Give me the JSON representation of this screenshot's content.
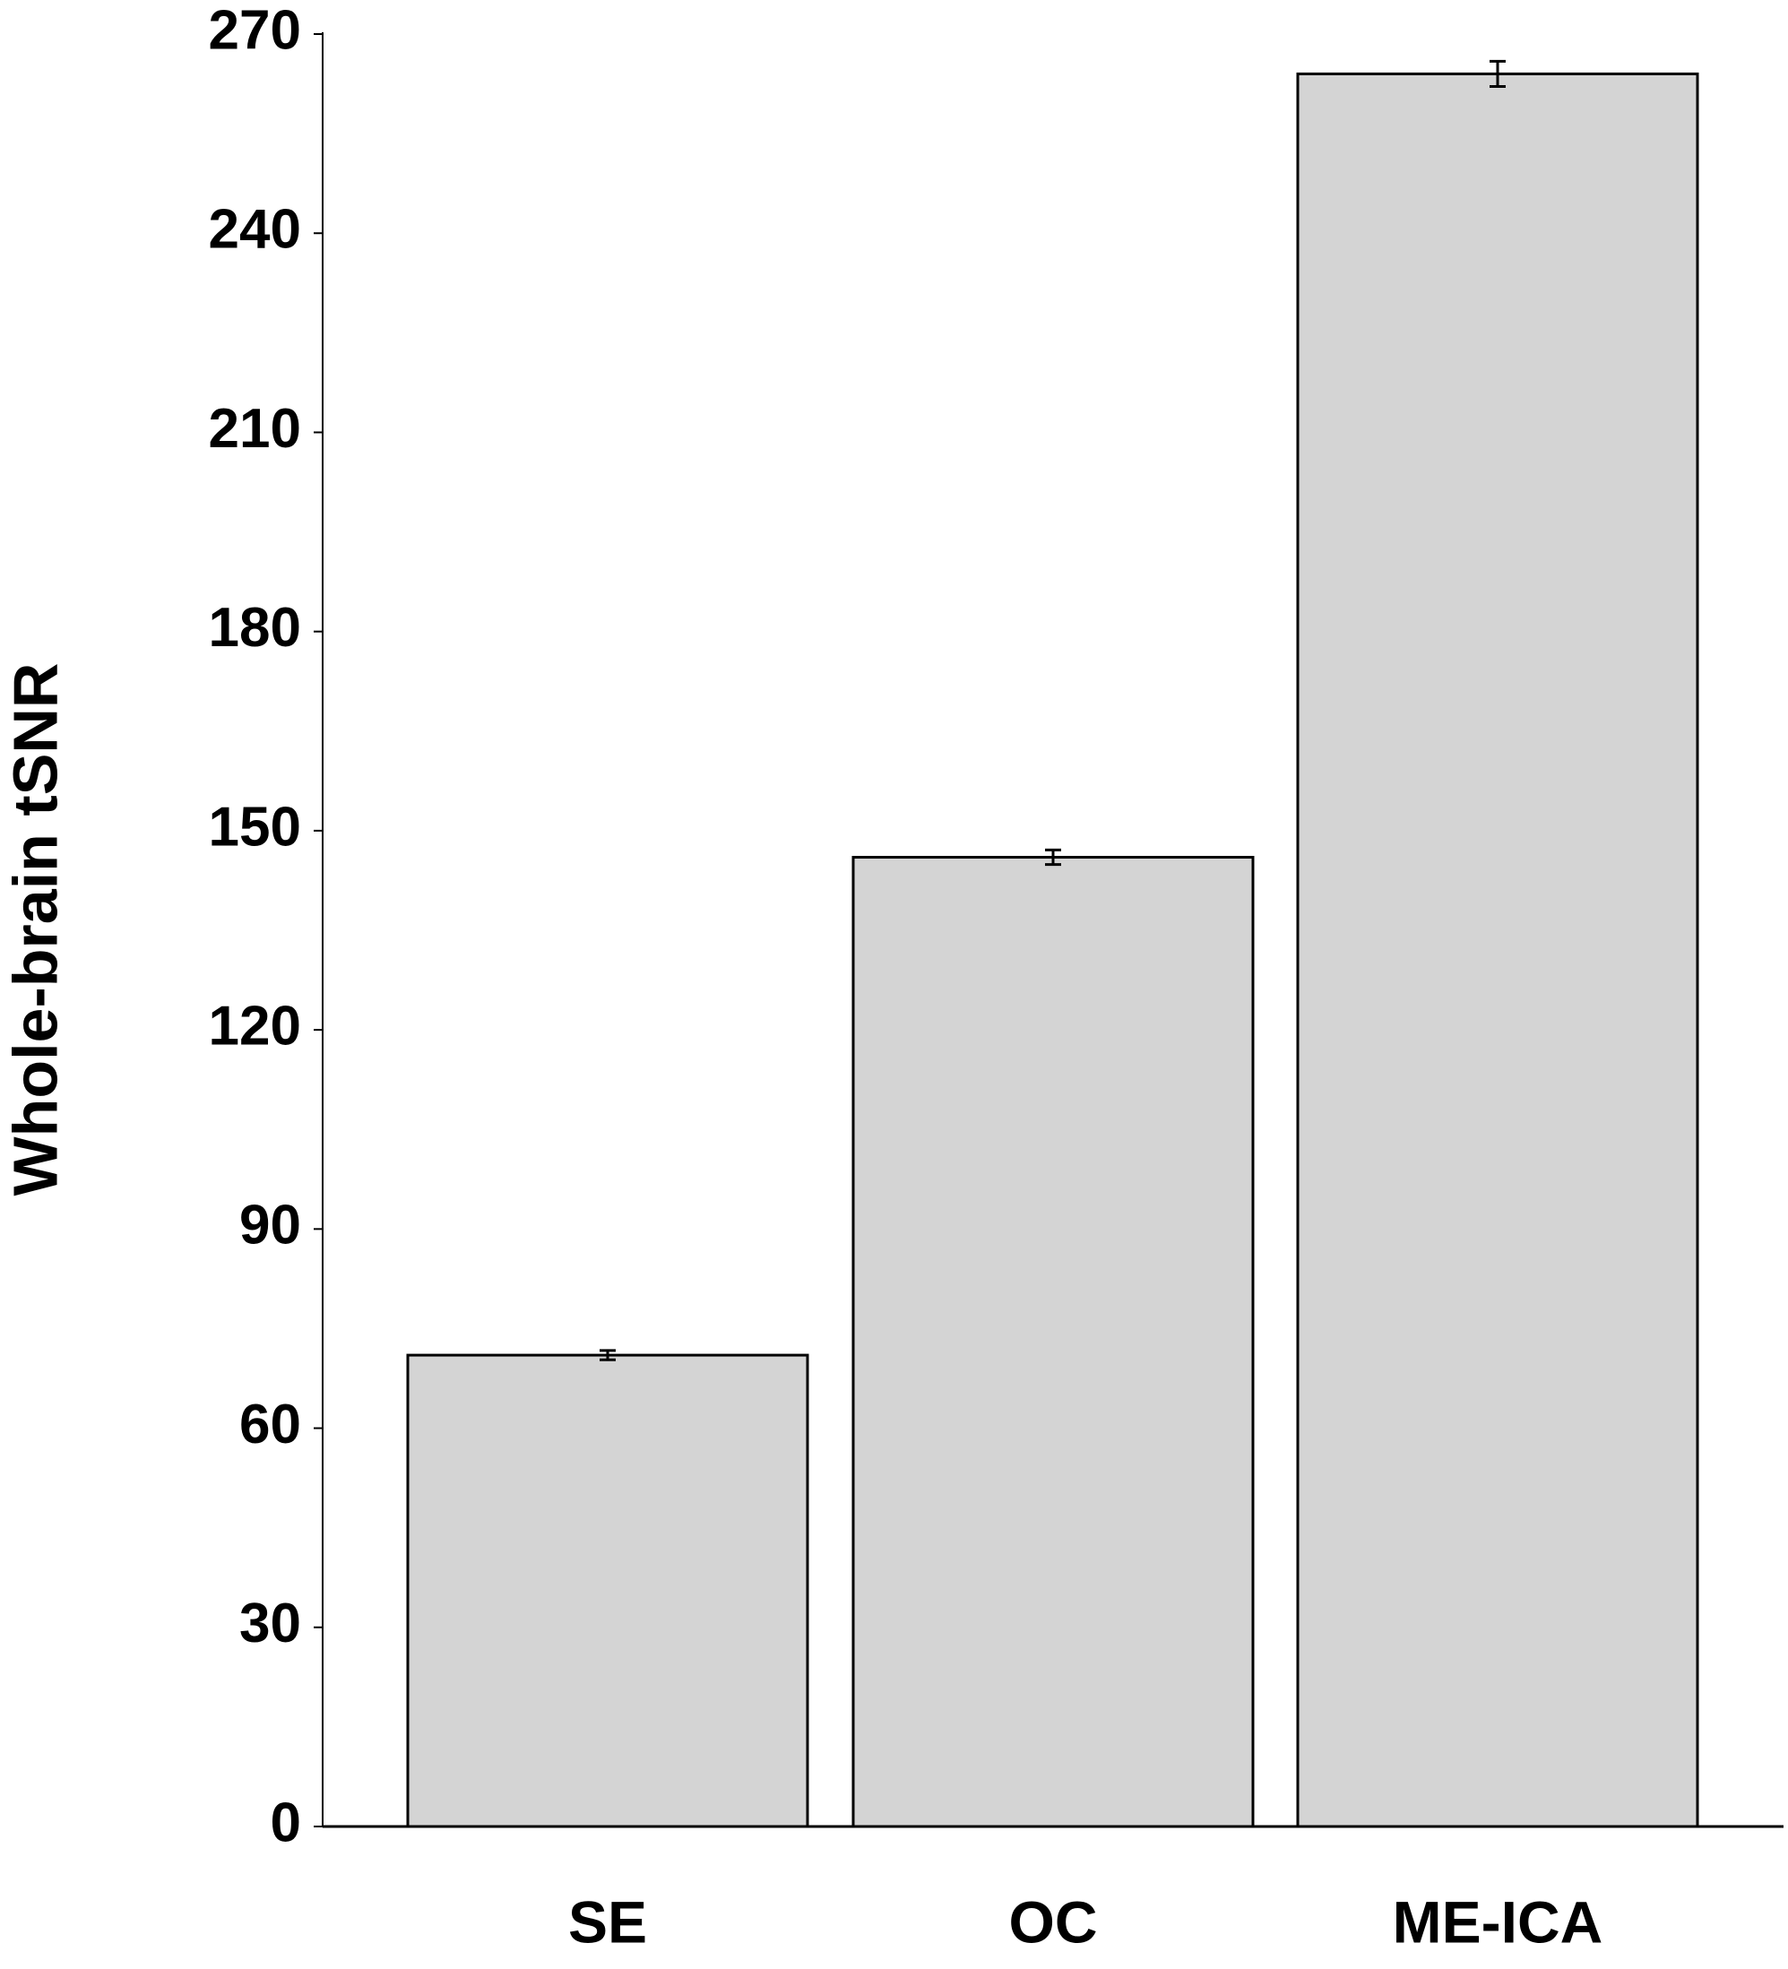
{
  "chart_data": {
    "type": "bar",
    "y_label": "Whole-brain tSNR",
    "categories": [
      "SE",
      "OC",
      "ME-ICA"
    ],
    "values": [
      71,
      146,
      264
    ],
    "errors": [
      0.7,
      1.1,
      1.9
    ],
    "color": "#d4d4d4",
    "ylim": [
      0,
      270
    ],
    "yticks": [
      0,
      30,
      60,
      90,
      120,
      150,
      180,
      210,
      240,
      270
    ],
    "grid": false
  }
}
